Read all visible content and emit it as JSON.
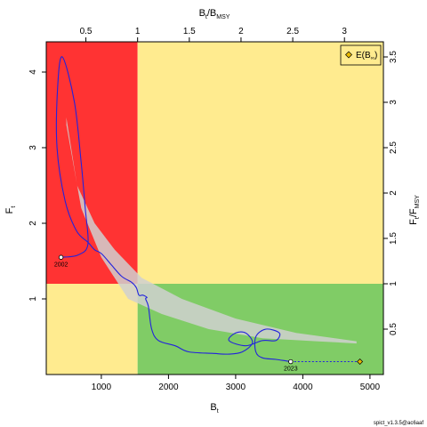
{
  "chart_data": {
    "type": "line",
    "colors": {
      "red_zone": "#ff3333",
      "yellow_zone": "#ffeb8f",
      "green_zone": "#80cc66",
      "trajectory": "#2222dd",
      "ci_band": "#d0d0d0",
      "forecast": "#2222dd",
      "expected": "#e8b800"
    },
    "axes": {
      "x_bottom": {
        "label": "B",
        "label_sub": "t",
        "ticks": [
          1000,
          2000,
          3000,
          4000,
          5000
        ],
        "range": [
          180,
          5200
        ]
      },
      "y_left": {
        "label": "F",
        "label_sub": "t",
        "ticks": [
          1,
          2,
          3,
          4
        ],
        "range": [
          0,
          4.4
        ]
      },
      "x_top": {
        "label_pre": "B",
        "label_pre_sub": "t",
        "label_sep": "/",
        "label_post": "B",
        "label_post_sub": "MSY",
        "ticks": [
          0.5,
          1,
          1.5,
          2,
          2.5,
          3
        ]
      },
      "y_right": {
        "label_pre": "F",
        "label_pre_sub": "t",
        "label_sep": "/",
        "label_post": "F",
        "label_post_sub": "MSY",
        "ticks": [
          0.5,
          1,
          1.5,
          2,
          2.5,
          3,
          3.5
        ]
      }
    },
    "reference": {
      "Bmsy": 1540,
      "Fmsy": 1.2
    },
    "tick_text": {
      "x_bottom": [
        "1000",
        "2000",
        "3000",
        "4000",
        "5000"
      ],
      "y_left": [
        "1",
        "2",
        "3",
        "4"
      ],
      "x_top": [
        "0.5",
        "1",
        "1.5",
        "2",
        "2.5",
        "3"
      ],
      "y_right": [
        "0.5",
        "1",
        "1.5",
        "2",
        "2.5",
        "3",
        "3.5"
      ]
    },
    "trajectory": [
      [
        400,
        1.55
      ],
      [
        650,
        1.58
      ],
      [
        800,
        1.72
      ],
      [
        760,
        2.2
      ],
      [
        700,
        2.8
      ],
      [
        600,
        3.6
      ],
      [
        420,
        4.2
      ],
      [
        350,
        3.8
      ],
      [
        340,
        3.0
      ],
      [
        460,
        2.3
      ],
      [
        630,
        1.9
      ],
      [
        800,
        1.75
      ],
      [
        900,
        1.65
      ],
      [
        1000,
        1.6
      ],
      [
        1150,
        1.45
      ],
      [
        1300,
        1.3
      ],
      [
        1450,
        1.22
      ],
      [
        1520,
        1.15
      ],
      [
        1560,
        1.05
      ],
      [
        1620,
        1.05
      ],
      [
        1680,
        1.02
      ],
      [
        1660,
        1.0
      ],
      [
        1700,
        0.9
      ],
      [
        1750,
        0.6
      ],
      [
        1850,
        0.45
      ],
      [
        2100,
        0.38
      ],
      [
        2300,
        0.3
      ],
      [
        2650,
        0.28
      ],
      [
        2900,
        0.27
      ],
      [
        3100,
        0.3
      ],
      [
        3250,
        0.42
      ],
      [
        3150,
        0.55
      ],
      [
        3000,
        0.55
      ],
      [
        2900,
        0.45
      ],
      [
        3150,
        0.38
      ],
      [
        3400,
        0.45
      ],
      [
        3600,
        0.45
      ],
      [
        3650,
        0.55
      ],
      [
        3450,
        0.6
      ],
      [
        3300,
        0.5
      ],
      [
        3300,
        0.3
      ],
      [
        3400,
        0.22
      ],
      [
        3600,
        0.2
      ],
      [
        3750,
        0.18
      ],
      [
        3820,
        0.17
      ]
    ],
    "forecast": [
      [
        3820,
        0.17
      ],
      [
        4850,
        0.17
      ]
    ],
    "start_point": {
      "label": "2002",
      "x": 400,
      "y": 1.55
    },
    "end_point": {
      "label": "2023",
      "x": 3820,
      "y": 0.17
    },
    "expected_point": {
      "x": 4850,
      "y": 0.17
    },
    "ci_band_upper": [
      [
        480,
        3.4
      ],
      [
        640,
        2.5
      ],
      [
        900,
        2.0
      ],
      [
        1200,
        1.65
      ],
      [
        1600,
        1.28
      ],
      [
        2200,
        1.0
      ],
      [
        3000,
        0.74
      ],
      [
        3900,
        0.55
      ],
      [
        4800,
        0.44
      ]
    ],
    "ci_band_lower": [
      [
        480,
        3.3
      ],
      [
        700,
        2.2
      ],
      [
        1000,
        1.55
      ],
      [
        1400,
        1.0
      ],
      [
        1900,
        0.8
      ],
      [
        2600,
        0.6
      ],
      [
        3400,
        0.48
      ],
      [
        4200,
        0.44
      ],
      [
        4800,
        0.41
      ]
    ],
    "legend": {
      "position": "top-right",
      "entry_main": "E(B",
      "entry_sub": "∞",
      "entry_close": ")"
    },
    "footer": "spict_v1.3.5@ac6aaf"
  }
}
